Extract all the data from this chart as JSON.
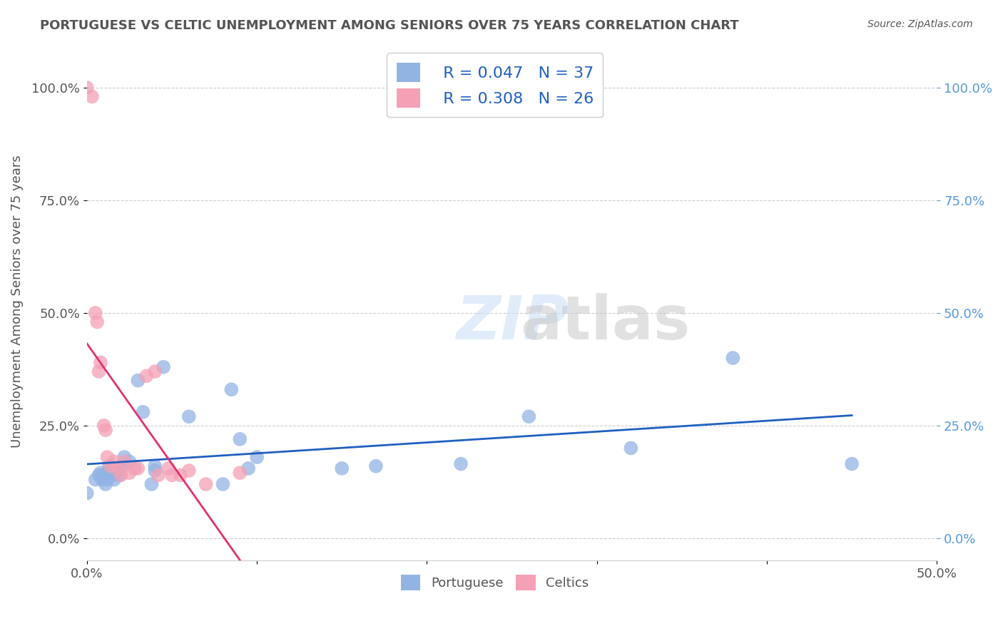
{
  "title": "PORTUGUESE VS CELTIC UNEMPLOYMENT AMONG SENIORS OVER 75 YEARS CORRELATION CHART",
  "source": "Source: ZipAtlas.com",
  "ylabel": "Unemployment Among Seniors over 75 years",
  "xlabel": "",
  "xlim": [
    0.0,
    0.5
  ],
  "ylim": [
    -0.05,
    1.1
  ],
  "ytick_labels": [
    "0.0%",
    "25.0%",
    "50.0%",
    "75.0%",
    "100.0%"
  ],
  "ytick_values": [
    0.0,
    0.25,
    0.5,
    0.75,
    1.0
  ],
  "xtick_labels": [
    "0.0%",
    "",
    "",
    "",
    "",
    "50.0%"
  ],
  "xtick_values": [
    0.0,
    0.1,
    0.2,
    0.3,
    0.4,
    0.5
  ],
  "right_ytick_labels": [
    "100.0%",
    "75.0%",
    "50.0%",
    "25.0%",
    "0.0%"
  ],
  "portuguese_R": 0.047,
  "portuguese_N": 37,
  "celtic_R": 0.308,
  "celtic_N": 26,
  "portuguese_color": "#92b4e3",
  "celtic_color": "#f4a0b5",
  "portuguese_line_color": "#2060c0",
  "celtic_line_color": "#e03070",
  "portuguese_scatter_x": [
    0.0,
    0.005,
    0.007,
    0.008,
    0.009,
    0.01,
    0.011,
    0.012,
    0.013,
    0.013,
    0.015,
    0.016,
    0.017,
    0.018,
    0.019,
    0.02,
    0.022,
    0.025,
    0.03,
    0.033,
    0.038,
    0.04,
    0.04,
    0.045,
    0.06,
    0.08,
    0.085,
    0.09,
    0.095,
    0.1,
    0.15,
    0.17,
    0.22,
    0.26,
    0.32,
    0.38,
    0.45
  ],
  "portuguese_scatter_y": [
    0.1,
    0.13,
    0.14,
    0.145,
    0.13,
    0.14,
    0.12,
    0.13,
    0.145,
    0.16,
    0.14,
    0.13,
    0.145,
    0.155,
    0.14,
    0.155,
    0.18,
    0.17,
    0.35,
    0.28,
    0.12,
    0.15,
    0.16,
    0.38,
    0.27,
    0.12,
    0.33,
    0.22,
    0.155,
    0.18,
    0.155,
    0.16,
    0.165,
    0.27,
    0.2,
    0.4,
    0.165
  ],
  "celtic_scatter_x": [
    0.0,
    0.003,
    0.005,
    0.006,
    0.007,
    0.008,
    0.01,
    0.011,
    0.012,
    0.014,
    0.016,
    0.018,
    0.02,
    0.022,
    0.025,
    0.028,
    0.03,
    0.035,
    0.04,
    0.042,
    0.048,
    0.05,
    0.055,
    0.06,
    0.07,
    0.09
  ],
  "celtic_scatter_y": [
    1.0,
    0.98,
    0.5,
    0.48,
    0.37,
    0.39,
    0.25,
    0.24,
    0.18,
    0.16,
    0.17,
    0.155,
    0.14,
    0.17,
    0.145,
    0.155,
    0.155,
    0.36,
    0.37,
    0.14,
    0.155,
    0.14,
    0.14,
    0.15,
    0.12,
    0.145
  ],
  "watermark": "ZIPatlas",
  "background_color": "#ffffff",
  "grid_color": "#cccccc"
}
